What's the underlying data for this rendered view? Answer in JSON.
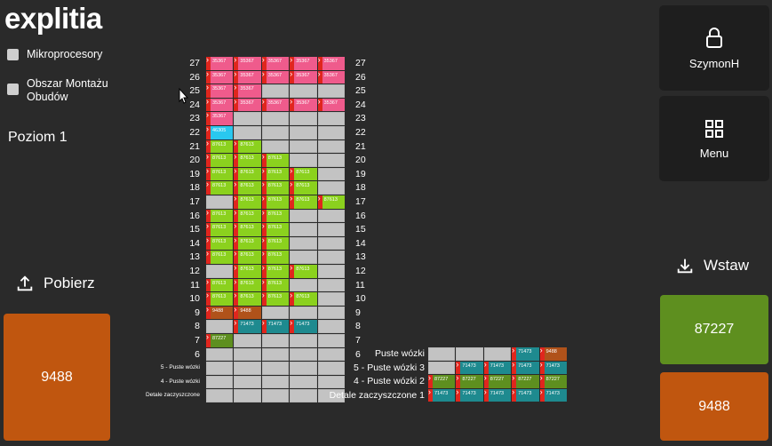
{
  "app": {
    "logo": "explitia"
  },
  "filters": [
    {
      "label": "Mikroprocesory"
    },
    {
      "label": "Obszar Montażu Obudów"
    }
  ],
  "level_label": "Poziom 1",
  "actions": {
    "pobierz_label": "Pobierz",
    "wstaw_label": "Wstaw"
  },
  "pobierz_tile": {
    "value": "9488",
    "color": "#c0560f"
  },
  "wstaw_tiles": [
    {
      "value": "87227",
      "color": "#5e8f1f"
    },
    {
      "value": "9488",
      "color": "#c0560f"
    }
  ],
  "user": {
    "name": "SzymonH",
    "icon": "lock-icon"
  },
  "menu": {
    "label": "Menu",
    "icon": "grid-icon"
  },
  "colors": {
    "pink": "#ef5b8c",
    "green": "#8bd11e",
    "cyan": "#29c8ef",
    "teal": "#1e8a8f",
    "brown": "#b0521a",
    "olive": "#5e8f1f",
    "red": "#e0261d",
    "grey": "#c3c3c3"
  },
  "main_rack": {
    "rows": [
      {
        "label": "27",
        "cells": [
          {
            "v": "35367",
            "c": "pink"
          },
          {
            "v": "35367",
            "c": "pink"
          },
          {
            "v": "35367",
            "c": "pink"
          },
          {
            "v": "35367",
            "c": "pink"
          },
          {
            "v": "35367",
            "c": "pink"
          }
        ]
      },
      {
        "label": "26",
        "cells": [
          {
            "v": "35367",
            "c": "pink"
          },
          {
            "v": "35367",
            "c": "pink"
          },
          {
            "v": "35367",
            "c": "pink"
          },
          {
            "v": "35367",
            "c": "pink"
          },
          {
            "v": "35367",
            "c": "pink"
          }
        ]
      },
      {
        "label": "25",
        "cells": [
          {
            "v": "35367",
            "c": "pink"
          },
          {
            "v": "35367",
            "c": "pink"
          },
          null,
          null,
          null
        ]
      },
      {
        "label": "24",
        "cells": [
          {
            "v": "35367",
            "c": "pink"
          },
          {
            "v": "35367",
            "c": "pink"
          },
          {
            "v": "35367",
            "c": "pink"
          },
          {
            "v": "35367",
            "c": "pink"
          },
          {
            "v": "35367",
            "c": "pink"
          }
        ]
      },
      {
        "label": "23",
        "cells": [
          {
            "v": "35367",
            "c": "pink"
          },
          null,
          null,
          null,
          null
        ]
      },
      {
        "label": "22",
        "cells": [
          {
            "v": "46305",
            "c": "cyan"
          },
          null,
          null,
          null,
          null
        ]
      },
      {
        "label": "21",
        "cells": [
          {
            "v": "87613",
            "c": "green"
          },
          {
            "v": "87613",
            "c": "green"
          },
          null,
          null,
          null
        ]
      },
      {
        "label": "20",
        "cells": [
          {
            "v": "87613",
            "c": "green"
          },
          {
            "v": "87613",
            "c": "green"
          },
          {
            "v": "87613",
            "c": "green"
          },
          null,
          null
        ]
      },
      {
        "label": "19",
        "cells": [
          {
            "v": "87613",
            "c": "green"
          },
          {
            "v": "87613",
            "c": "green"
          },
          {
            "v": "87613",
            "c": "green"
          },
          {
            "v": "87613",
            "c": "green"
          },
          null
        ]
      },
      {
        "label": "18",
        "cells": [
          {
            "v": "87613",
            "c": "green"
          },
          {
            "v": "87613",
            "c": "green"
          },
          {
            "v": "87613",
            "c": "green"
          },
          {
            "v": "87613",
            "c": "green"
          },
          null
        ]
      },
      {
        "label": "17",
        "cells": [
          null,
          {
            "v": "87613",
            "c": "green"
          },
          {
            "v": "87613",
            "c": "green"
          },
          {
            "v": "87613",
            "c": "green"
          },
          {
            "v": "87613",
            "c": "green"
          }
        ]
      },
      {
        "label": "16",
        "cells": [
          {
            "v": "87613",
            "c": "green"
          },
          {
            "v": "87613",
            "c": "green"
          },
          {
            "v": "87613",
            "c": "green"
          },
          null,
          null
        ]
      },
      {
        "label": "15",
        "cells": [
          {
            "v": "87613",
            "c": "green"
          },
          {
            "v": "87613",
            "c": "green"
          },
          {
            "v": "87613",
            "c": "green"
          },
          null,
          null
        ]
      },
      {
        "label": "14",
        "cells": [
          {
            "v": "87613",
            "c": "green"
          },
          {
            "v": "87613",
            "c": "green"
          },
          {
            "v": "87613",
            "c": "green"
          },
          null,
          null
        ]
      },
      {
        "label": "13",
        "cells": [
          {
            "v": "87613",
            "c": "green"
          },
          {
            "v": "87613",
            "c": "green"
          },
          {
            "v": "87613",
            "c": "green"
          },
          null,
          null
        ]
      },
      {
        "label": "12",
        "cells": [
          null,
          {
            "v": "87613",
            "c": "green"
          },
          {
            "v": "87613",
            "c": "green"
          },
          {
            "v": "87613",
            "c": "green"
          },
          null
        ]
      },
      {
        "label": "11",
        "cells": [
          {
            "v": "87613",
            "c": "green"
          },
          {
            "v": "87613",
            "c": "green"
          },
          {
            "v": "87613",
            "c": "green"
          },
          null,
          null
        ]
      },
      {
        "label": "10",
        "cells": [
          {
            "v": "87613",
            "c": "green"
          },
          {
            "v": "87613",
            "c": "green"
          },
          {
            "v": "87613",
            "c": "green"
          },
          {
            "v": "87613",
            "c": "green"
          },
          null
        ]
      },
      {
        "label": "9",
        "cells": [
          {
            "v": "9488",
            "c": "brown"
          },
          {
            "v": "9488",
            "c": "brown"
          },
          null,
          null,
          null
        ]
      },
      {
        "label": "8",
        "cells": [
          null,
          {
            "v": "71473",
            "c": "teal"
          },
          {
            "v": "71473",
            "c": "teal"
          },
          {
            "v": "71473",
            "c": "teal"
          },
          null
        ]
      },
      {
        "label": "7",
        "cells": [
          {
            "v": "87227",
            "c": "olive"
          },
          null,
          null,
          null,
          null
        ]
      },
      {
        "label": "6",
        "cells": [
          null,
          null,
          null,
          null,
          null
        ]
      },
      {
        "label": "5 - Puste wózki",
        "small": true,
        "cells": [
          null,
          null,
          null,
          null,
          null
        ]
      },
      {
        "label": "4 - Puste wózki",
        "small": true,
        "cells": [
          null,
          null,
          null,
          null,
          null
        ]
      },
      {
        "label": "Detale zaczyszczone",
        "small": true,
        "cells": [
          null,
          null,
          null,
          null,
          null
        ]
      }
    ]
  },
  "side_rack": {
    "rows": [
      {
        "label": "Puste wózki",
        "cells": [
          null,
          null,
          null,
          {
            "v": "71473",
            "c": "teal"
          },
          {
            "v": "9488",
            "c": "brown"
          }
        ]
      },
      {
        "label": "5 - Puste wózki  3",
        "cells": [
          null,
          {
            "v": "71473",
            "c": "teal"
          },
          {
            "v": "71473",
            "c": "teal"
          },
          {
            "v": "71473",
            "c": "teal"
          },
          {
            "v": "71473",
            "c": "teal"
          }
        ]
      },
      {
        "label": "4 - Puste wózki  2",
        "cells": [
          {
            "v": "87227",
            "c": "olive"
          },
          {
            "v": "87227",
            "c": "olive"
          },
          {
            "v": "87227",
            "c": "olive"
          },
          {
            "v": "87227",
            "c": "olive"
          },
          {
            "v": "87227",
            "c": "olive"
          }
        ]
      },
      {
        "label": "Detale zaczyszczone 1",
        "cells": [
          {
            "v": "71473",
            "c": "teal"
          },
          {
            "v": "71473",
            "c": "teal"
          },
          {
            "v": "71473",
            "c": "teal"
          },
          {
            "v": "71473",
            "c": "teal"
          },
          {
            "v": "71473",
            "c": "teal"
          }
        ]
      }
    ]
  }
}
